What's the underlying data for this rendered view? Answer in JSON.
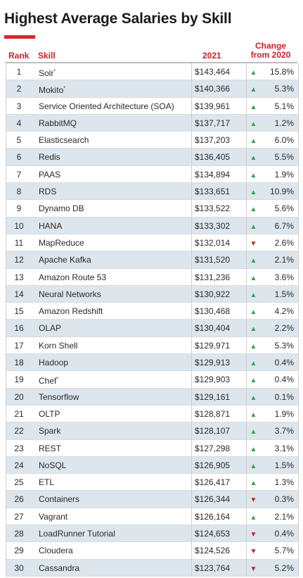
{
  "title": "Highest Average Salaries by Skill",
  "colors": {
    "accent": "#d62a2a",
    "header": "#c8202a",
    "up": "#3aa04a",
    "down": "#c8202a",
    "stripe": "#dde6ec"
  },
  "headers": {
    "rank": "Rank",
    "skill": "Skill",
    "year": "2021",
    "change_line1": "Change",
    "change_line2": "from 2020"
  },
  "chart_data": {
    "type": "table",
    "title": "Highest Average Salaries by Skill",
    "columns": [
      "Rank",
      "Skill",
      "2021",
      "Change from 2020"
    ],
    "rows": [
      {
        "rank": "1",
        "skill": "Solr",
        "sup": "*",
        "salary": "$143,464",
        "dir": "up",
        "change": "15.8%"
      },
      {
        "rank": "2",
        "skill": "Mokito",
        "sup": "*",
        "salary": "$140,366",
        "dir": "up",
        "change": "5.3%"
      },
      {
        "rank": "3",
        "skill": "Service Oriented Architecture (SOA)",
        "sup": "",
        "salary": "$139,961",
        "dir": "up",
        "change": "5.1%"
      },
      {
        "rank": "4",
        "skill": "RabbitMQ",
        "sup": "",
        "salary": "$137,717",
        "dir": "up",
        "change": "1.2%"
      },
      {
        "rank": "5",
        "skill": "Elasticsearch",
        "sup": "",
        "salary": "$137,203",
        "dir": "up",
        "change": "6.0%"
      },
      {
        "rank": "6",
        "skill": "Redis",
        "sup": "",
        "salary": "$136,405",
        "dir": "up",
        "change": "5.5%"
      },
      {
        "rank": "7",
        "skill": "PAAS",
        "sup": "",
        "salary": "$134,894",
        "dir": "up",
        "change": "1.9%"
      },
      {
        "rank": "8",
        "skill": "RDS",
        "sup": "",
        "salary": "$133,651",
        "dir": "up",
        "change": "10.9%"
      },
      {
        "rank": "9",
        "skill": "Dynamo DB",
        "sup": "",
        "salary": "$133,522",
        "dir": "up",
        "change": "5.6%"
      },
      {
        "rank": "10",
        "skill": "HANA",
        "sup": "",
        "salary": "$133,302",
        "dir": "up",
        "change": "6.7%"
      },
      {
        "rank": "11",
        "skill": "MapReduce",
        "sup": "",
        "salary": "$132,014",
        "dir": "down",
        "change": "2.6%"
      },
      {
        "rank": "12",
        "skill": "Apache Kafka",
        "sup": "",
        "salary": "$131,520",
        "dir": "up",
        "change": "2.1%"
      },
      {
        "rank": "13",
        "skill": "Amazon Route 53",
        "sup": "",
        "salary": "$131,236",
        "dir": "up",
        "change": "3.6%"
      },
      {
        "rank": "14",
        "skill": "Neural Networks",
        "sup": "",
        "salary": "$130,922",
        "dir": "up",
        "change": "1.5%"
      },
      {
        "rank": "15",
        "skill": "Amazon Redshift",
        "sup": "",
        "salary": "$130,468",
        "dir": "up",
        "change": "4.2%"
      },
      {
        "rank": "16",
        "skill": "OLAP",
        "sup": "",
        "salary": "$130,404",
        "dir": "up",
        "change": "2.2%"
      },
      {
        "rank": "17",
        "skill": "Korn Shell",
        "sup": "",
        "salary": "$129,971",
        "dir": "up",
        "change": "5.3%"
      },
      {
        "rank": "18",
        "skill": "Hadoop",
        "sup": "",
        "salary": "$129,913",
        "dir": "up",
        "change": "0.4%"
      },
      {
        "rank": "19",
        "skill": "Chef",
        "sup": "*",
        "salary": "$129,903",
        "dir": "up",
        "change": "0.4%"
      },
      {
        "rank": "20",
        "skill": "Tensorflow",
        "sup": "",
        "salary": "$129,161",
        "dir": "up",
        "change": "0.1%"
      },
      {
        "rank": "21",
        "skill": "OLTP",
        "sup": "",
        "salary": "$128,871",
        "dir": "up",
        "change": "1.9%"
      },
      {
        "rank": "22",
        "skill": "Spark",
        "sup": "",
        "salary": "$128,107",
        "dir": "up",
        "change": "3.7%"
      },
      {
        "rank": "23",
        "skill": "REST",
        "sup": "",
        "salary": "$127,298",
        "dir": "up",
        "change": "3.1%"
      },
      {
        "rank": "24",
        "skill": "NoSQL",
        "sup": "",
        "salary": "$126,905",
        "dir": "up",
        "change": "1.5%"
      },
      {
        "rank": "25",
        "skill": "ETL",
        "sup": "",
        "salary": "$126,417",
        "dir": "up",
        "change": "1.3%"
      },
      {
        "rank": "26",
        "skill": "Containers",
        "sup": "",
        "salary": "$126,344",
        "dir": "down",
        "change": "0.3%"
      },
      {
        "rank": "27",
        "skill": "Vagrant",
        "sup": "",
        "salary": "$126,164",
        "dir": "up",
        "change": "2.1%"
      },
      {
        "rank": "28",
        "skill": "LoadRunner Tutorial",
        "sup": "",
        "salary": "$124,653",
        "dir": "down",
        "change": "0.4%"
      },
      {
        "rank": "29",
        "skill": "Cloudera",
        "sup": "",
        "salary": "$124,526",
        "dir": "down",
        "change": "5.7%"
      },
      {
        "rank": "30",
        "skill": "Cassandra",
        "sup": "",
        "salary": "$123,764",
        "dir": "down",
        "change": "5.2%"
      }
    ]
  }
}
